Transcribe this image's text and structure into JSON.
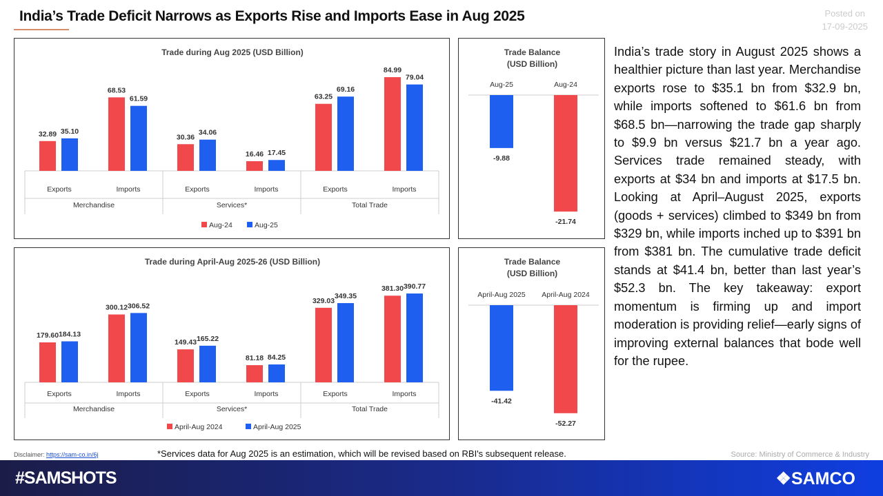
{
  "header": {
    "title": "India’s Trade Deficit Narrows as Exports Rise and Imports Ease in Aug 2025",
    "posted_label": "Posted on",
    "posted_date": "17-09-2025"
  },
  "colors": {
    "red": "#f0484b",
    "blue": "#1f5ff0"
  },
  "chart_data": [
    {
      "type": "bar",
      "title": "Trade during Aug 2025 (USD Billion)",
      "categories": [
        "Exports",
        "Imports",
        "Exports",
        "Imports",
        "Exports",
        "Imports"
      ],
      "groups": [
        "Merchandise",
        "Services*",
        "Total Trade"
      ],
      "series": [
        {
          "name": "Aug-24",
          "color": "#f0484b",
          "values": [
            32.89,
            68.53,
            30.36,
            16.46,
            63.25,
            84.99
          ],
          "labels": [
            "32.89",
            "68.53",
            "30.36",
            "16.46",
            "63.25",
            "84.99"
          ]
        },
        {
          "name": "Aug-25",
          "color": "#1f5ff0",
          "values": [
            35.1,
            61.59,
            34.06,
            17.45,
            69.16,
            79.04
          ],
          "labels": [
            "35.10",
            "61.59",
            "34.06",
            "17.45",
            "69.16",
            "79.04"
          ]
        }
      ],
      "legend": "bottom",
      "grid": false
    },
    {
      "type": "bar",
      "title": "Trade Balance (USD Billion)",
      "title_lines": [
        "Trade Balance",
        "(USD Billion)"
      ],
      "categories": [
        "Aug-25",
        "Aug-24"
      ],
      "values": [
        -9.88,
        -21.74
      ],
      "labels": [
        "-9.88",
        "-21.74"
      ],
      "colors": [
        "#1f5ff0",
        "#f0484b"
      ]
    },
    {
      "type": "bar",
      "title": "Trade during April-Aug 2025-26 (USD Billion)",
      "categories": [
        "Exports",
        "Imports",
        "Exports",
        "Imports",
        "Exports",
        "Imports"
      ],
      "groups": [
        "Merchandise",
        "Services*",
        "Total Trade"
      ],
      "series": [
        {
          "name": "April-Aug 2024",
          "color": "#f0484b",
          "values": [
            179.6,
            300.12,
            149.43,
            81.18,
            329.03,
            381.3
          ],
          "labels": [
            "179.60",
            "300.12",
            "149.43",
            "81.18",
            "329.03",
            "381.30"
          ]
        },
        {
          "name": "April-Aug 2025",
          "color": "#1f5ff0",
          "values": [
            184.13,
            306.52,
            165.22,
            84.25,
            349.35,
            390.77
          ],
          "labels": [
            "184.13",
            "306.52",
            "165.22",
            "84.25",
            "349.35",
            "390.77"
          ]
        }
      ],
      "legend": "bottom",
      "grid": false
    },
    {
      "type": "bar",
      "title": "Trade Balance (USD Billion)",
      "title_lines": [
        "Trade Balance",
        "(USD Billion)"
      ],
      "categories": [
        "April-Aug 2025",
        "April-Aug 2024"
      ],
      "values": [
        -41.42,
        -52.27
      ],
      "labels": [
        "-41.42",
        "-52.27"
      ],
      "colors": [
        "#1f5ff0",
        "#f0484b"
      ]
    }
  ],
  "commentary": "India’s trade story in August 2025 shows a healthier picture than last year. Merchandise exports rose to $35.1 bn from $32.9 bn, while imports softened to $61.6 bn from $68.5 bn—narrowing the trade gap sharply to $9.9 bn versus $21.7 bn a year ago. Services trade remained steady, with exports at $34 bn and imports at $17.5 bn. Looking at April–August 2025, exports (goods + services) climbed to $349 bn from $329 bn, while imports inched up to $391 bn from $381 bn. The cumulative trade deficit stands at $41.4 bn, better than last year’s $52.3 bn. The key takeaway: export momentum is firming up and import moderation is providing relief—early signs of improving external balances that bode well for the rupee.",
  "footer": {
    "disclaimer_label": "Disclaimer:",
    "disclaimer_link": "https://sam-co.in/6j",
    "note": "*Services data for Aug 2025 is an estimation, which will be revised based on RBI's subsequent release.",
    "source": "Source: Ministry of Commerce & Industry",
    "hashtag": "#SAMSHOTS",
    "brand": "❖SAMCO"
  }
}
